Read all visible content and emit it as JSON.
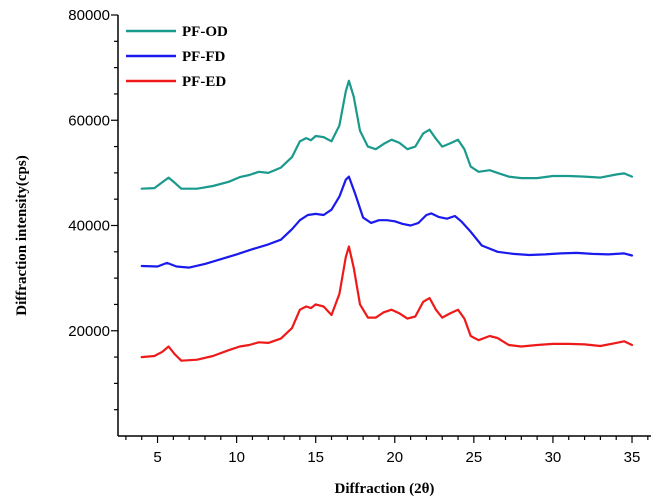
{
  "chart_data": {
    "type": "line",
    "xlabel": "Diffraction (2θ)",
    "ylabel": "Diffraction intensity(cps)",
    "xlim": [
      2.5,
      36.2
    ],
    "ylim": [
      0,
      80000
    ],
    "x_ticks": [
      5,
      10,
      15,
      20,
      25,
      30,
      35
    ],
    "y_ticks": [
      20000,
      40000,
      60000,
      80000
    ],
    "legend_position": "top-left",
    "series": [
      {
        "name": "PF-OD",
        "color": "#1a9a8c",
        "x": [
          4.0,
          4.8,
          5.3,
          5.7,
          6.1,
          6.5,
          7.5,
          8.5,
          9.5,
          10.2,
          10.8,
          11.4,
          12.0,
          12.8,
          13.5,
          14.0,
          14.4,
          14.7,
          15.0,
          15.5,
          16.0,
          16.5,
          16.9,
          17.1,
          17.4,
          17.8,
          18.3,
          18.8,
          19.3,
          19.8,
          20.3,
          20.8,
          21.3,
          21.8,
          22.2,
          22.6,
          23.0,
          23.5,
          24.0,
          24.4,
          24.8,
          25.3,
          26.0,
          26.5,
          27.2,
          28.0,
          29.0,
          30.0,
          31.0,
          32.0,
          33.0,
          34.0,
          34.5,
          35.0
        ],
        "values": [
          47000,
          47100,
          48200,
          49100,
          48100,
          47000,
          47000,
          47500,
          48300,
          49200,
          49600,
          50200,
          50000,
          51000,
          53000,
          56000,
          56600,
          56200,
          57000,
          56800,
          56000,
          59000,
          65500,
          67500,
          64500,
          58000,
          55000,
          54500,
          55500,
          56300,
          55700,
          54500,
          55000,
          57500,
          58200,
          56500,
          55000,
          55600,
          56300,
          54500,
          51200,
          50200,
          50500,
          50000,
          49300,
          49000,
          49000,
          49400,
          49400,
          49300,
          49100,
          49700,
          49900,
          49300
        ]
      },
      {
        "name": "PF-FD",
        "color": "#1a1aee",
        "x": [
          4.0,
          5.0,
          5.6,
          6.2,
          7.0,
          8.0,
          9.0,
          10.0,
          11.0,
          12.0,
          12.8,
          13.5,
          14.0,
          14.5,
          15.0,
          15.5,
          16.0,
          16.5,
          16.9,
          17.1,
          17.5,
          18.0,
          18.5,
          19.0,
          19.5,
          20.0,
          20.5,
          21.0,
          21.5,
          22.0,
          22.3,
          22.8,
          23.3,
          23.8,
          24.2,
          24.8,
          25.5,
          26.5,
          27.5,
          28.5,
          29.5,
          30.5,
          31.5,
          32.5,
          33.5,
          34.5,
          35.0
        ],
        "values": [
          32300,
          32200,
          32900,
          32200,
          32000,
          32700,
          33600,
          34500,
          35500,
          36400,
          37300,
          39300,
          41000,
          42000,
          42200,
          42000,
          43000,
          45500,
          48700,
          49300,
          46000,
          41500,
          40500,
          41000,
          41000,
          40800,
          40300,
          40000,
          40500,
          42000,
          42300,
          41600,
          41300,
          41800,
          40800,
          38800,
          36200,
          35000,
          34600,
          34400,
          34500,
          34700,
          34800,
          34600,
          34500,
          34700,
          34300
        ]
      },
      {
        "name": "PF-ED",
        "color": "#ee1a1a",
        "x": [
          4.0,
          4.8,
          5.3,
          5.7,
          6.1,
          6.5,
          7.5,
          8.5,
          9.5,
          10.2,
          10.8,
          11.4,
          12.0,
          12.8,
          13.5,
          14.0,
          14.4,
          14.7,
          15.0,
          15.5,
          16.0,
          16.5,
          16.9,
          17.1,
          17.4,
          17.8,
          18.3,
          18.8,
          19.3,
          19.8,
          20.3,
          20.8,
          21.3,
          21.8,
          22.2,
          22.6,
          23.0,
          23.5,
          24.0,
          24.4,
          24.8,
          25.3,
          26.0,
          26.5,
          27.2,
          28.0,
          29.0,
          30.0,
          31.0,
          32.0,
          33.0,
          34.0,
          34.5,
          35.0
        ],
        "values": [
          15000,
          15200,
          16000,
          17000,
          15500,
          14300,
          14500,
          15200,
          16300,
          17000,
          17300,
          17800,
          17700,
          18500,
          20500,
          24000,
          24600,
          24300,
          25000,
          24600,
          23000,
          27000,
          34000,
          36000,
          32000,
          25000,
          22500,
          22500,
          23500,
          24000,
          23300,
          22300,
          22700,
          25500,
          26200,
          24000,
          22500,
          23300,
          24000,
          22300,
          19000,
          18200,
          19000,
          18600,
          17300,
          17000,
          17300,
          17500,
          17500,
          17400,
          17100,
          17700,
          18000,
          17300
        ]
      }
    ]
  }
}
